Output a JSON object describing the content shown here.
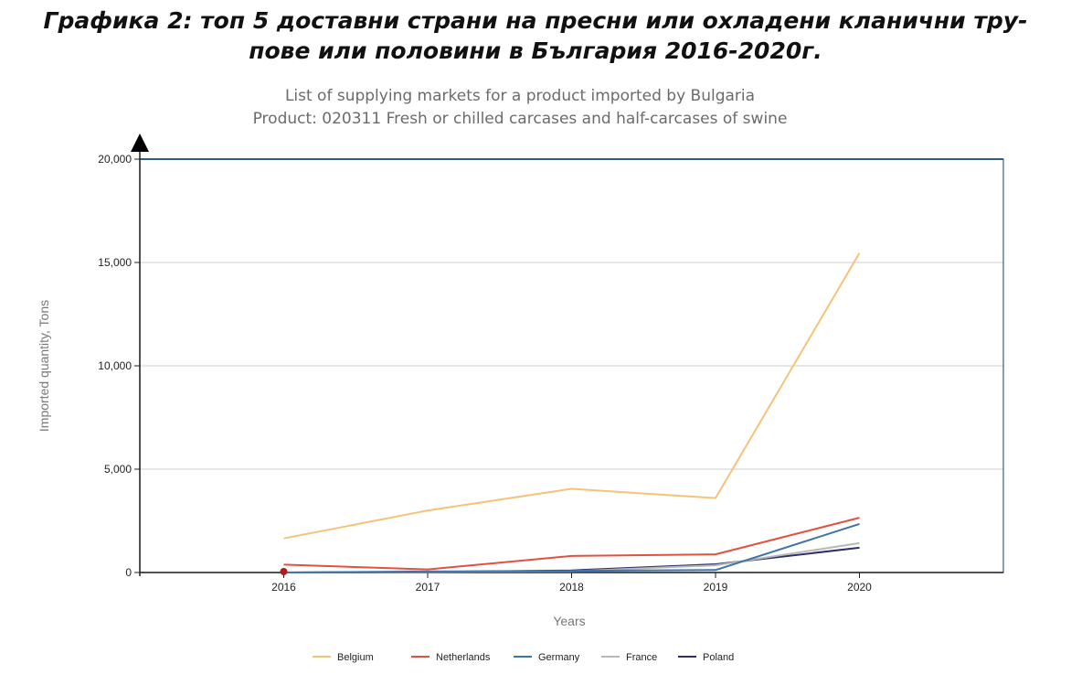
{
  "caption": {
    "line1": "Графика 2: топ 5 доставни страни на пресни или охладени кланични тру-",
    "line2": "пове или половини в България 2016-2020г."
  },
  "chart_data": {
    "type": "line",
    "title": "List of supplying markets for a product imported by Bulgaria",
    "subtitle": "Product: 020311 Fresh or chilled carcases and half-carcases of swine",
    "xlabel": "Years",
    "ylabel": "Imported quantity, Tons",
    "x": [
      "2016",
      "2017",
      "2018",
      "2019",
      "2020"
    ],
    "xlim": [
      2015,
      2021
    ],
    "ylim": [
      0,
      20000
    ],
    "yticks": [
      0,
      5000,
      10000,
      15000,
      20000
    ],
    "ytick_labels": [
      "0",
      "5,000",
      "10,000",
      "15,000",
      "20,000"
    ],
    "grid": true,
    "legend_position": "bottom",
    "series": [
      {
        "name": "Belgium",
        "color": "#f5c27a",
        "values": [
          1650,
          3000,
          4050,
          3600,
          15450
        ]
      },
      {
        "name": "Netherlands",
        "color": "#e0523f",
        "values": [
          380,
          150,
          800,
          880,
          2650
        ]
      },
      {
        "name": "Germany",
        "color": "#3b74a8",
        "values": [
          0,
          50,
          80,
          120,
          2350
        ]
      },
      {
        "name": "France",
        "color": "#b8b8b8",
        "values": [
          0,
          30,
          60,
          350,
          1420
        ]
      },
      {
        "name": "Poland",
        "color": "#2e2e6e",
        "values": [
          0,
          20,
          100,
          400,
          1200
        ]
      }
    ]
  }
}
